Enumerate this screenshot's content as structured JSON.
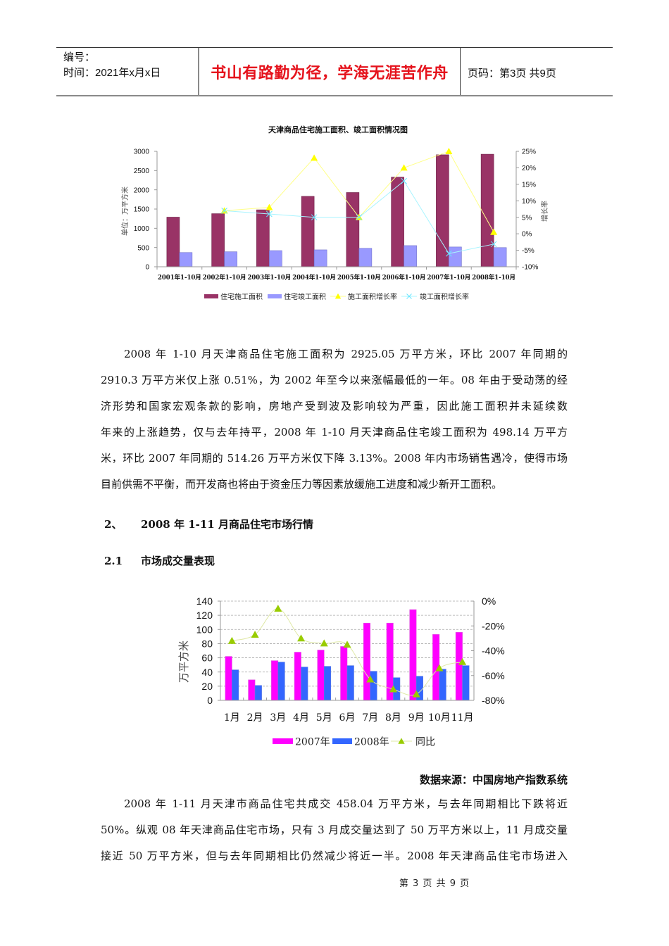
{
  "header": {
    "serial_label": "编号：",
    "date_line": "时间：2021年x月x日",
    "motto": "书山有路勤为径，学海无涯苦作舟",
    "page_info": "页码：第3页 共9页"
  },
  "paragraph1": {
    "lines": [
      "2008 年 1-10 月天津商品住宅施工面积为 2925.05 万平方米，环比 2007 年同期的",
      "2910.3 万平方米仅上涨 0.51%，为 2002 年至今以来涨幅最低的一年。08 年由于受动荡的经",
      "济形势和国家宏观条款的影响，房地产受到波及影响较为严重，因此施工面积并未延续数",
      "年来的上涨趋势，仅与去年持平，2008 年 1-10 月天津商品住宅竣工面积为 498.14 万平方",
      "米，环比 2007 年同期的 514.26 万平方米仅下降 3.13%。2008 年内市场销售遇冷，使得市场",
      "目前供需不平衡，而开发商也将由于资金压力等因素放缓施工进度和减少新开工面积。"
    ]
  },
  "section2": {
    "number": "2、",
    "title": "2008 年 1-11 月商品住宅市场行情"
  },
  "section2_1": {
    "number": "2.1",
    "title": "市场成交量表现"
  },
  "source_note": "数据来源：中国房地产指数系统",
  "paragraph2": {
    "lines": [
      "2008 年 1-11 月天津市商品住宅共成交 458.04 万平方米，与去年同期相比下跌将近",
      "50%。纵观 08 年天津商品住宅市场，只有 3 月成交量达到了 50 万平方米以上，11 月成交量",
      "接近 50 万平方米，但与去年同期相比仍然减少将近一半。2008 年天津商品住宅市场进入"
    ]
  },
  "footer": {
    "page_text": "第 3 页 共 9 页"
  },
  "chart_data": [
    {
      "type": "bar+line",
      "title": "天津商品住宅施工面积、竣工面积情况图",
      "xlabel": "",
      "ylabel": "单位：万平方米",
      "y2label": "增长率",
      "categories": [
        "2001年1-10月",
        "2002年1-10月",
        "2003年1-10月",
        "2004年1-10月",
        "2005年1-10月",
        "2006年1-10月",
        "2007年1-10月",
        "2008年1-10月"
      ],
      "series": [
        {
          "name": "住宅施工面积",
          "type": "bar",
          "axis": "left",
          "color": "#993366",
          "stroke": "#6e2248",
          "values": [
            1290,
            1380,
            1480,
            1830,
            1930,
            2330,
            2910.3,
            2925.05
          ]
        },
        {
          "name": "住宅竣工面积",
          "type": "bar",
          "axis": "left",
          "color": "#9999ff",
          "stroke": "#7272cc",
          "values": [
            370,
            390,
            420,
            440,
            480,
            550,
            514.26,
            498.14
          ]
        },
        {
          "name": "施工面积增长率",
          "type": "line",
          "axis": "right",
          "marker": "triangle",
          "color": "#ffff00",
          "line_color": "#ffff88",
          "values": [
            null,
            7,
            8,
            23,
            5,
            20,
            25,
            0.51
          ]
        },
        {
          "name": "竣工面积增长率",
          "type": "line",
          "axis": "right",
          "marker": "x",
          "color": "#66e6ff",
          "line_color": "#a8f4ff",
          "values": [
            null,
            7,
            6,
            5,
            5,
            16,
            -6,
            -3.13
          ]
        }
      ],
      "ylim": [
        0,
        3000
      ],
      "yticks": [
        0,
        500,
        1000,
        1500,
        2000,
        2500,
        3000
      ],
      "y2lim": [
        -10,
        25
      ],
      "y2ticks": [
        -10,
        -5,
        0,
        5,
        10,
        15,
        20,
        25
      ],
      "y2_suffix": "%",
      "grid": false,
      "legend": "bottom"
    },
    {
      "type": "bar+line",
      "title": "",
      "xlabel": "",
      "ylabel": "万平方米",
      "y2label": "",
      "categories": [
        "1月",
        "2月",
        "3月",
        "4月",
        "5月",
        "6月",
        "7月",
        "8月",
        "9月",
        "10月",
        "11月"
      ],
      "series": [
        {
          "name": "2007年",
          "type": "bar",
          "axis": "left",
          "color": "#ff00ff",
          "stroke": "#e060e0",
          "values": [
            62,
            29,
            56,
            68,
            71,
            76,
            109,
            109,
            128,
            93,
            96
          ]
        },
        {
          "name": "2008年",
          "type": "bar",
          "axis": "left",
          "color": "#3366ff",
          "stroke": "#5a7ae0",
          "values": [
            43,
            21,
            54,
            47,
            48,
            49,
            41,
            32,
            34,
            44,
            49
          ]
        },
        {
          "name": "同比",
          "type": "line",
          "axis": "right",
          "marker": "triangle",
          "color": "#99cc00",
          "line_color": "#dfe8a6",
          "values": [
            -32,
            -27,
            -6,
            -30,
            -34,
            -35,
            -63,
            -71,
            -75,
            -54,
            -49
          ]
        }
      ],
      "ylim": [
        0,
        140
      ],
      "yticks": [
        0,
        20,
        40,
        60,
        80,
        100,
        120,
        140
      ],
      "y2lim": [
        -80,
        0
      ],
      "y2ticks": [
        -80,
        -60,
        -40,
        -20,
        0
      ],
      "y2_suffix": "%",
      "grid": true,
      "legend": "bottom"
    }
  ]
}
